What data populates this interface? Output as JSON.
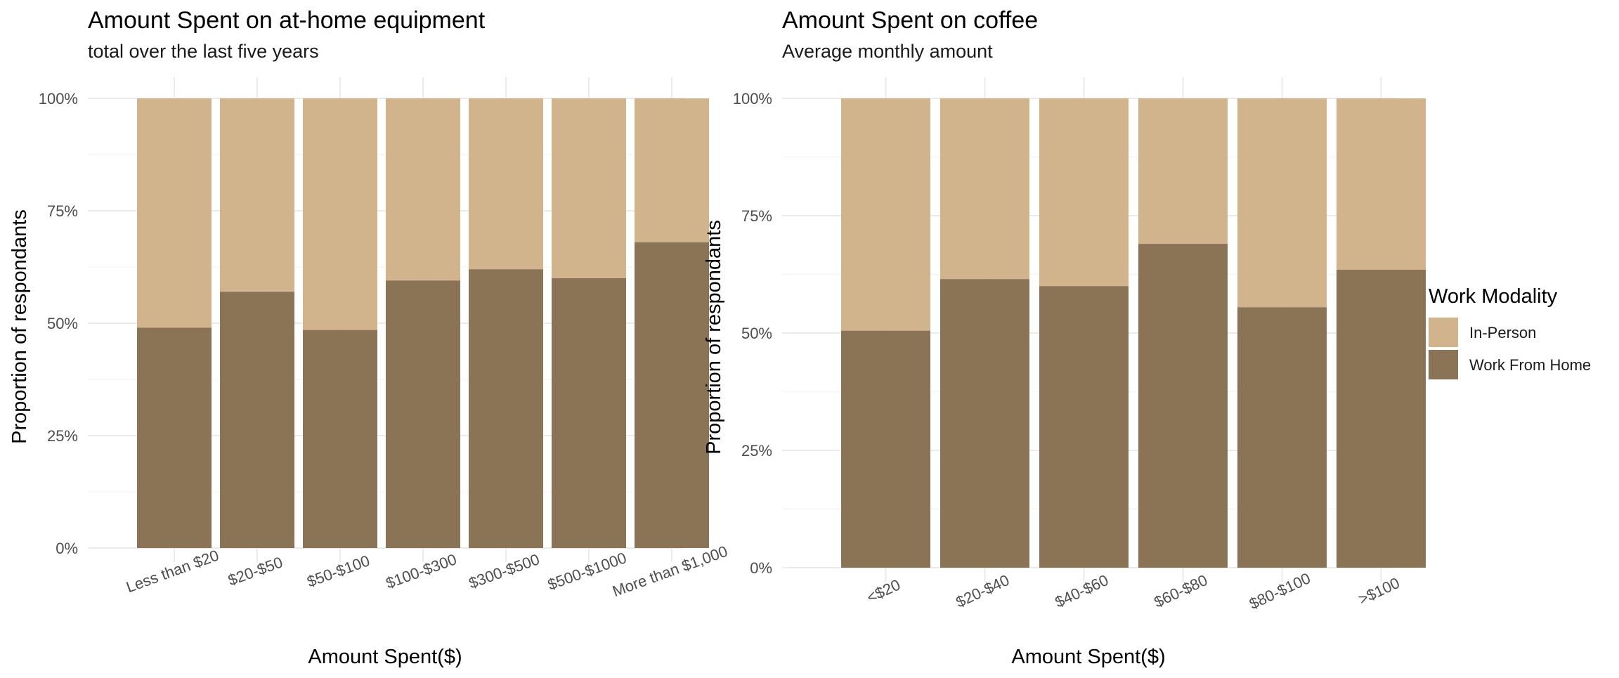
{
  "chart_data": [
    {
      "type": "bar",
      "stacked": true,
      "normalized": true,
      "title": "Amount Spent on at-home equipment",
      "subtitle": "total over the last five years",
      "xlabel": "Amount Spent($)",
      "ylabel": "Proportion of respondants",
      "ylim": [
        0,
        1
      ],
      "yticks": [
        "0%",
        "25%",
        "50%",
        "75%",
        "100%"
      ],
      "categories": [
        "Less than $20",
        "$20-$50",
        "$50-$100",
        "$100-$300",
        "$300-$500",
        "$500-$1000",
        "More than $1,000"
      ],
      "series": [
        {
          "name": "Work From Home",
          "values": [
            0.49,
            0.57,
            0.485,
            0.595,
            0.62,
            0.6,
            0.68
          ]
        },
        {
          "name": "In-Person",
          "values": [
            0.51,
            0.43,
            0.515,
            0.405,
            0.38,
            0.4,
            0.32
          ]
        }
      ],
      "grid": true,
      "legend": "none"
    },
    {
      "type": "bar",
      "stacked": true,
      "normalized": true,
      "title": "Amount Spent on coffee",
      "subtitle": "Average monthly amount",
      "xlabel": "Amount Spent($)",
      "ylabel": "Proportion of respondants",
      "ylim": [
        0,
        1
      ],
      "yticks": [
        "0%",
        "25%",
        "50%",
        "75%",
        "100%"
      ],
      "categories": [
        "<$20",
        "$20-$40",
        "$40-$60",
        "$60-$80",
        "$80-$100",
        ">$100"
      ],
      "series": [
        {
          "name": "Work From Home",
          "values": [
            0.505,
            0.615,
            0.6,
            0.69,
            0.555,
            0.635
          ]
        },
        {
          "name": "In-Person",
          "values": [
            0.495,
            0.385,
            0.4,
            0.31,
            0.445,
            0.365
          ]
        }
      ],
      "grid": true,
      "legend": "right"
    }
  ],
  "legend": {
    "title": "Work Modality",
    "items": [
      {
        "label": "In-Person",
        "color": "#D2B48C"
      },
      {
        "label": "Work From Home",
        "color": "#8B7355"
      }
    ]
  },
  "colors": {
    "in_person": "#D2B48C",
    "work_from_home": "#8B7355",
    "grid_major": "#EBEBEB",
    "grid_minor": "#F5F5F5"
  }
}
